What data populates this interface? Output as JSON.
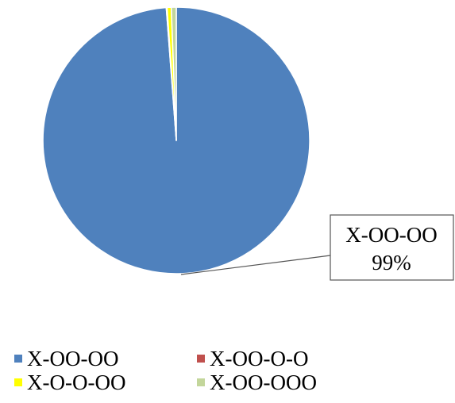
{
  "chart_data": {
    "type": "pie",
    "title": "",
    "categories": [
      "X-OO-OO",
      "X-OO-O-O",
      "X-O-O-OO",
      "X-OO-OOO"
    ],
    "values": [
      98.8,
      0.1,
      0.5,
      0.6
    ],
    "colors": [
      "#4F81BD",
      "#C0504D",
      "#FFFF00",
      "#C3D69B"
    ],
    "data_labels": [
      {
        "series_index": 0,
        "category": "X-OO-OO",
        "value_text": "99%"
      }
    ],
    "legend_position": "bottom"
  }
}
